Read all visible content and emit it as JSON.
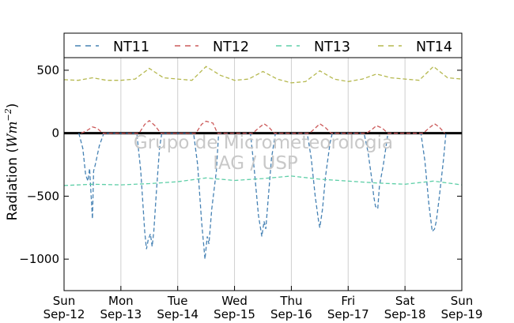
{
  "chart_data": {
    "type": "line",
    "ylabel": "Radiation (Wm⁻²)",
    "ylim": [
      -1250,
      600
    ],
    "yticks": [
      500,
      0,
      -500,
      -1000
    ],
    "ytick_labels": [
      "500",
      "0",
      "−500",
      "−1000"
    ],
    "xlim": [
      0,
      7
    ],
    "xticks": [
      {
        "day": 0,
        "line1": "Sun",
        "line2": "Sep-12"
      },
      {
        "day": 1,
        "line1": "Mon",
        "line2": "Sep-13"
      },
      {
        "day": 2,
        "line1": "Tue",
        "line2": "Sep-14"
      },
      {
        "day": 3,
        "line1": "Wed",
        "line2": "Sep-15"
      },
      {
        "day": 4,
        "line1": "Thu",
        "line2": "Sep-16"
      },
      {
        "day": 5,
        "line1": "Fri",
        "line2": "Sep-17"
      },
      {
        "day": 6,
        "line1": "Sat",
        "line2": "Sep-18"
      },
      {
        "day": 7,
        "line1": "Sun",
        "line2": "Sep-19"
      }
    ],
    "grid": "vertical",
    "legend_position": "top",
    "zero_line": true,
    "watermark": [
      "Grupo de Micrometeorologia",
      "IAG / USP"
    ],
    "series": [
      {
        "name": "NT11",
        "color": "#4682b4",
        "x": [
          0.26,
          0.33,
          0.38,
          0.42,
          0.45,
          0.5,
          0.52,
          0.55,
          0.62,
          0.7,
          1.28,
          1.35,
          1.42,
          1.45,
          1.48,
          1.52,
          1.55,
          1.58,
          1.62,
          1.68,
          1.72,
          2.28,
          2.35,
          2.42,
          2.48,
          2.52,
          2.55,
          2.6,
          2.68,
          2.72,
          3.28,
          3.35,
          3.42,
          3.48,
          3.52,
          3.55,
          3.6,
          3.65,
          3.72,
          4.28,
          4.35,
          4.42,
          4.48,
          4.5,
          4.55,
          4.6,
          4.68,
          4.72,
          5.28,
          5.35,
          5.42,
          5.45,
          5.48,
          5.52,
          5.55,
          5.62,
          5.7,
          6.28,
          6.35,
          6.42,
          6.48,
          6.52,
          6.55,
          6.6,
          6.68,
          6.72
        ],
        "y": [
          0,
          -120,
          -330,
          -380,
          -280,
          -680,
          -300,
          -250,
          -100,
          0,
          0,
          -300,
          -780,
          -920,
          -850,
          -800,
          -900,
          -780,
          -500,
          -120,
          0,
          0,
          -250,
          -700,
          -1000,
          -820,
          -880,
          -600,
          -300,
          0,
          0,
          -300,
          -650,
          -820,
          -700,
          -760,
          -480,
          -200,
          0,
          0,
          -200,
          -500,
          -700,
          -750,
          -600,
          -350,
          -80,
          0,
          0,
          -150,
          -380,
          -500,
          -580,
          -600,
          -420,
          -250,
          0,
          0,
          -220,
          -560,
          -780,
          -760,
          -700,
          -520,
          -200,
          0
        ]
      },
      {
        "name": "NT12",
        "color": "#cc5a5a",
        "x": [
          0.3,
          0.4,
          0.5,
          0.58,
          0.68,
          1.32,
          1.42,
          1.5,
          1.6,
          1.7,
          2.32,
          2.42,
          2.5,
          2.62,
          2.7,
          3.32,
          3.42,
          3.52,
          3.6,
          3.7,
          4.32,
          4.42,
          4.5,
          4.6,
          4.7,
          5.32,
          5.42,
          5.5,
          5.6,
          5.7,
          6.32,
          6.42,
          6.52,
          6.6,
          6.7
        ],
        "y": [
          0,
          20,
          50,
          40,
          0,
          0,
          70,
          100,
          60,
          0,
          0,
          70,
          95,
          80,
          0,
          0,
          40,
          75,
          50,
          0,
          0,
          40,
          75,
          45,
          0,
          0,
          30,
          60,
          40,
          0,
          0,
          40,
          75,
          50,
          0
        ]
      },
      {
        "name": "NT13",
        "color": "#5fcfa8",
        "x": [
          0,
          0.5,
          1.0,
          1.5,
          2.0,
          2.5,
          3.0,
          3.5,
          4.0,
          4.5,
          5.0,
          5.5,
          6.0,
          6.5,
          7.0
        ],
        "y": [
          -415,
          -405,
          -410,
          -400,
          -385,
          -355,
          -375,
          -360,
          -340,
          -365,
          -380,
          -395,
          -405,
          -380,
          -410
        ]
      },
      {
        "name": "NT14",
        "color": "#b5b84e",
        "x": [
          0,
          0.25,
          0.5,
          0.75,
          1.0,
          1.25,
          1.5,
          1.75,
          2.0,
          2.25,
          2.5,
          2.75,
          3.0,
          3.25,
          3.5,
          3.75,
          4.0,
          4.25,
          4.5,
          4.75,
          5.0,
          5.25,
          5.5,
          5.75,
          6.0,
          6.25,
          6.5,
          6.75,
          7.0
        ],
        "y": [
          425,
          420,
          440,
          420,
          420,
          430,
          515,
          440,
          430,
          420,
          530,
          460,
          420,
          430,
          490,
          430,
          400,
          410,
          495,
          430,
          410,
          430,
          470,
          440,
          430,
          420,
          530,
          440,
          430
        ]
      }
    ]
  }
}
